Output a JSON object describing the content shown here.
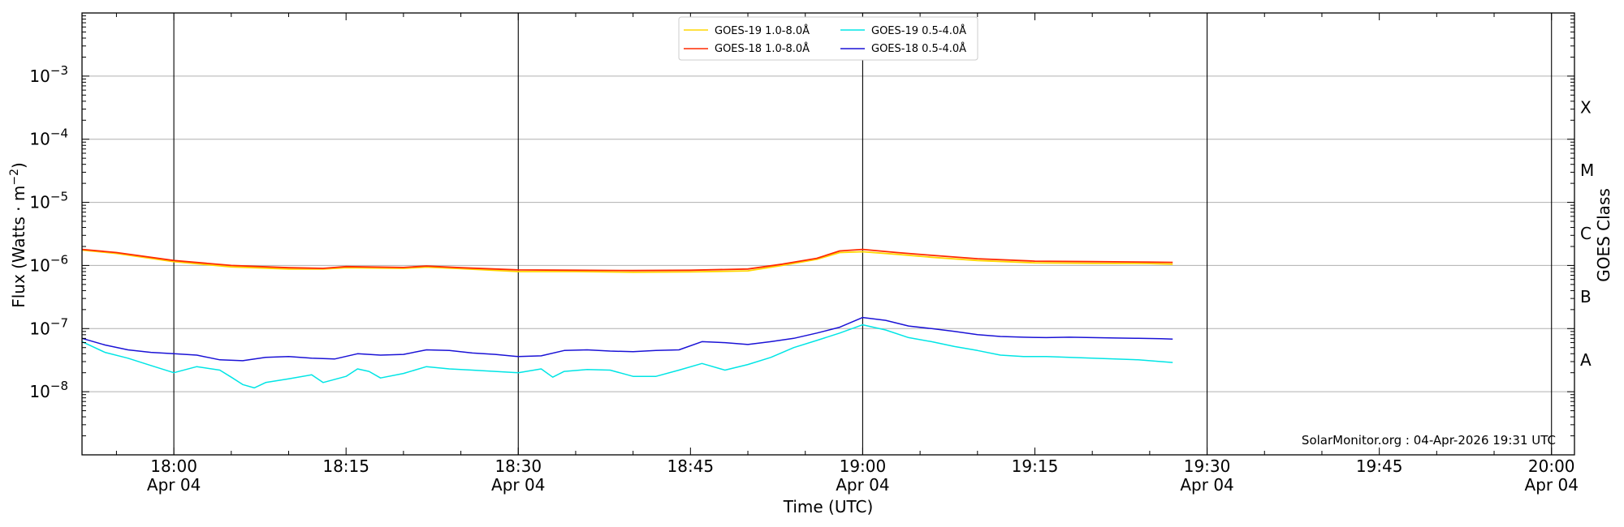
{
  "chart_data": {
    "type": "line",
    "xlabel": "Time (UTC)",
    "ylabel_main": "Flux (Watts · m",
    "ylabel_sup": "−2",
    "ylabel_close": ")",
    "ylabel_right": "GOES Class",
    "y_scale": "log",
    "ylim": [
      1e-09,
      0.01
    ],
    "xlim": [
      "17:52",
      "20:02"
    ],
    "y_ticks": [
      {
        "value": 1e-08,
        "base": "10",
        "exp": "−8"
      },
      {
        "value": 1e-07,
        "base": "10",
        "exp": "−7"
      },
      {
        "value": 1e-06,
        "base": "10",
        "exp": "−6"
      },
      {
        "value": 1e-05,
        "base": "10",
        "exp": "−5"
      },
      {
        "value": 0.0001,
        "base": "10",
        "exp": "−4"
      },
      {
        "value": 0.001,
        "base": "10",
        "exp": "−3"
      }
    ],
    "x_ticks": [
      {
        "time": "18:00",
        "label": "18:00",
        "date": "Apr 04"
      },
      {
        "time": "18:15",
        "label": "18:15",
        "date": ""
      },
      {
        "time": "18:30",
        "label": "18:30",
        "date": "Apr 04"
      },
      {
        "time": "18:45",
        "label": "18:45",
        "date": ""
      },
      {
        "time": "19:00",
        "label": "19:00",
        "date": "Apr 04"
      },
      {
        "time": "19:15",
        "label": "19:15",
        "date": ""
      },
      {
        "time": "19:30",
        "label": "19:30",
        "date": "Apr 04"
      },
      {
        "time": "19:45",
        "label": "19:45",
        "date": ""
      },
      {
        "time": "20:00",
        "label": "20:00",
        "date": "Apr 04"
      }
    ],
    "hour_lines": [
      "18:00",
      "18:30",
      "19:00",
      "19:30",
      "20:00"
    ],
    "gridlines_y": [
      1e-08,
      1e-07,
      1e-06,
      1e-05,
      0.0001,
      0.001
    ],
    "goes_classes": [
      {
        "label": "A",
        "value": 3.2e-08
      },
      {
        "label": "B",
        "value": 3.2e-07
      },
      {
        "label": "C",
        "value": 3.2e-06
      },
      {
        "label": "M",
        "value": 3.2e-05
      },
      {
        "label": "X",
        "value": 0.00032
      }
    ],
    "legend_position": "top-center",
    "watermark": "SolarMonitor.org : 04-Apr-2026 19:31 UTC",
    "series": [
      {
        "name": "GOES-19 1.0-8.0Å",
        "color": "#ffd700",
        "x": [
          "17:52",
          "17:55",
          "18:00",
          "18:05",
          "18:10",
          "18:13",
          "18:15",
          "18:20",
          "18:22",
          "18:25",
          "18:30",
          "18:35",
          "18:40",
          "18:45",
          "18:50",
          "18:53",
          "18:56",
          "18:58",
          "19:00",
          "19:03",
          "19:06",
          "19:10",
          "19:15",
          "19:20",
          "19:25",
          "19:27"
        ],
        "values": [
          1.75e-06,
          1.55e-06,
          1.15e-06,
          9.5e-07,
          8.8e-07,
          8.8e-07,
          9.2e-07,
          9e-07,
          9.4e-07,
          8.9e-07,
          8e-07,
          8e-07,
          7.8e-07,
          7.9e-07,
          8.2e-07,
          1e-06,
          1.25e-06,
          1.6e-06,
          1.65e-06,
          1.5e-06,
          1.35e-06,
          1.2e-06,
          1.1e-06,
          1.08e-06,
          1.07e-06,
          1.05e-06
        ]
      },
      {
        "name": "GOES-18 1.0-8.0Å",
        "color": "#ff2a00",
        "x": [
          "17:52",
          "17:55",
          "18:00",
          "18:05",
          "18:10",
          "18:13",
          "18:15",
          "18:20",
          "18:22",
          "18:25",
          "18:30",
          "18:35",
          "18:40",
          "18:45",
          "18:50",
          "18:53",
          "18:56",
          "18:58",
          "19:00",
          "19:03",
          "19:06",
          "19:10",
          "19:15",
          "19:20",
          "19:25",
          "19:27"
        ],
        "values": [
          1.8e-06,
          1.6e-06,
          1.2e-06,
          1e-06,
          9.2e-07,
          9e-07,
          9.6e-07,
          9.3e-07,
          9.8e-07,
          9.2e-07,
          8.5e-07,
          8.4e-07,
          8.3e-07,
          8.4e-07,
          8.8e-07,
          1.05e-06,
          1.3e-06,
          1.7e-06,
          1.8e-06,
          1.6e-06,
          1.45e-06,
          1.28e-06,
          1.17e-06,
          1.15e-06,
          1.13e-06,
          1.12e-06
        ]
      },
      {
        "name": "GOES-19 0.5-4.0Å",
        "color": "#00e5e5",
        "x": [
          "17:52",
          "17:54",
          "17:56",
          "17:58",
          "18:00",
          "18:02",
          "18:04",
          "18:05",
          "18:06",
          "18:07",
          "18:08",
          "18:10",
          "18:12",
          "18:13",
          "18:15",
          "18:16",
          "18:17",
          "18:18",
          "18:20",
          "18:22",
          "18:24",
          "18:26",
          "18:28",
          "18:30",
          "18:32",
          "18:33",
          "18:34",
          "18:36",
          "18:38",
          "18:40",
          "18:42",
          "18:44",
          "18:46",
          "18:48",
          "18:50",
          "18:52",
          "18:54",
          "18:56",
          "18:58",
          "19:00",
          "19:02",
          "19:04",
          "19:06",
          "19:08",
          "19:10",
          "19:12",
          "19:14",
          "19:16",
          "19:18",
          "19:20",
          "19:22",
          "19:24",
          "19:26",
          "19:27"
        ],
        "values": [
          6.2e-08,
          4.2e-08,
          3.4e-08,
          2.6e-08,
          2e-08,
          2.5e-08,
          2.2e-08,
          1.7e-08,
          1.3e-08,
          1.15e-08,
          1.4e-08,
          1.6e-08,
          1.85e-08,
          1.4e-08,
          1.75e-08,
          2.3e-08,
          2.1e-08,
          1.65e-08,
          1.95e-08,
          2.5e-08,
          2.3e-08,
          2.2e-08,
          2.1e-08,
          2e-08,
          2.3e-08,
          1.7e-08,
          2.1e-08,
          2.25e-08,
          2.2e-08,
          1.75e-08,
          1.75e-08,
          2.2e-08,
          2.8e-08,
          2.2e-08,
          2.7e-08,
          3.5e-08,
          5e-08,
          6.5e-08,
          8.5e-08,
          1.15e-07,
          9.5e-08,
          7.2e-08,
          6.2e-08,
          5.2e-08,
          4.5e-08,
          3.8e-08,
          3.6e-08,
          3.6e-08,
          3.5e-08,
          3.4e-08,
          3.3e-08,
          3.2e-08,
          3e-08,
          2.9e-08
        ]
      },
      {
        "name": "GOES-18 0.5-4.0Å",
        "color": "#1a12d6",
        "x": [
          "17:52",
          "17:54",
          "17:56",
          "17:58",
          "18:00",
          "18:02",
          "18:04",
          "18:06",
          "18:08",
          "18:10",
          "18:12",
          "18:14",
          "18:16",
          "18:18",
          "18:20",
          "18:22",
          "18:24",
          "18:26",
          "18:28",
          "18:30",
          "18:32",
          "18:34",
          "18:36",
          "18:38",
          "18:40",
          "18:42",
          "18:44",
          "18:46",
          "18:48",
          "18:50",
          "18:52",
          "18:54",
          "18:56",
          "18:58",
          "19:00",
          "19:02",
          "19:04",
          "19:06",
          "19:08",
          "19:10",
          "19:12",
          "19:14",
          "19:16",
          "19:18",
          "19:20",
          "19:22",
          "19:24",
          "19:26",
          "19:27"
        ],
        "values": [
          7e-08,
          5.5e-08,
          4.6e-08,
          4.2e-08,
          4e-08,
          3.8e-08,
          3.2e-08,
          3.1e-08,
          3.5e-08,
          3.6e-08,
          3.4e-08,
          3.3e-08,
          4e-08,
          3.8e-08,
          3.9e-08,
          4.6e-08,
          4.5e-08,
          4.1e-08,
          3.9e-08,
          3.6e-08,
          3.7e-08,
          4.5e-08,
          4.6e-08,
          4.4e-08,
          4.3e-08,
          4.5e-08,
          4.6e-08,
          6.2e-08,
          6e-08,
          5.6e-08,
          6.2e-08,
          7e-08,
          8.5e-08,
          1.05e-07,
          1.5e-07,
          1.35e-07,
          1.1e-07,
          1e-07,
          9e-08,
          8e-08,
          7.5e-08,
          7.3e-08,
          7.2e-08,
          7.3e-08,
          7.2e-08,
          7.1e-08,
          7e-08,
          6.9e-08,
          6.8e-08
        ]
      }
    ]
  }
}
